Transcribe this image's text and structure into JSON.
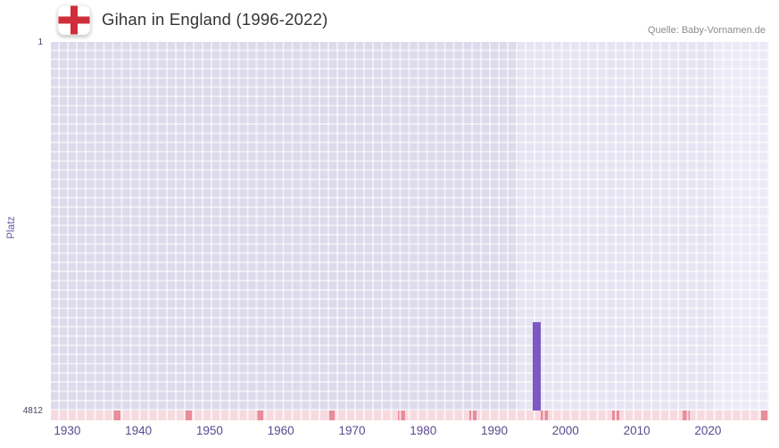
{
  "header": {
    "title": "Gihan in England (1996-2022)",
    "source": "Quelle: Baby-Vornamen.de"
  },
  "y_axis": {
    "label": "Platz",
    "top_tick": "1",
    "bottom_tick": "4812"
  },
  "chart_data": {
    "type": "bar",
    "title": "Gihan in England (1996-2022)",
    "xlabel": "",
    "ylabel": "Platz",
    "x_ticks": [
      "1930",
      "1940",
      "1950",
      "1960",
      "1970",
      "1980",
      "1990",
      "2000",
      "2010",
      "2020"
    ],
    "x_tick_years": [
      1930,
      1940,
      1950,
      1960,
      1970,
      1980,
      1990,
      2000,
      2010,
      2020
    ],
    "x_range": [
      1927.7,
      2028.6
    ],
    "ylim": [
      1,
      4812
    ],
    "y_inverted": true,
    "grid": true,
    "legend_position": "none",
    "series": [
      {
        "name": "Gihan",
        "points": [
          {
            "x": 1996,
            "y": 3660
          }
        ]
      }
    ],
    "plot_bands": [
      {
        "from": 1927.7,
        "to": 1993.3,
        "color": "#dcdaeb"
      },
      {
        "from": 1993.3,
        "to": 2020.9,
        "color": "#e6e4f2"
      },
      {
        "from": 2020.9,
        "to": 2028.6,
        "color": "#eceaf6"
      }
    ],
    "strip_marker_years": [
      1937,
      1947,
      1957,
      1967,
      1977,
      1987,
      1997,
      2007,
      2017,
      2028
    ],
    "colors": {
      "bar": "#7e57c2",
      "grid_line": "#ffffff",
      "axis_strip": "#f7dae0",
      "axis_strip_marker": "#e88d9a",
      "x_tick_text": "#5b4a8f",
      "y_tick_text": "#4c4566",
      "flag_cross_red": "#cf2e3b"
    }
  }
}
